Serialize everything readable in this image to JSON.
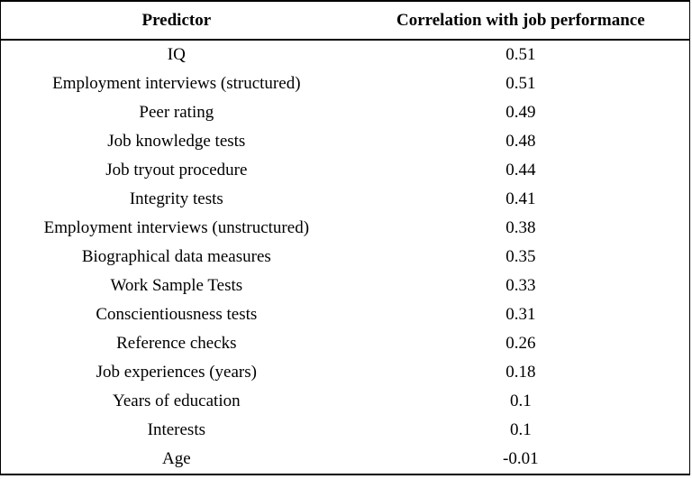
{
  "chart_data": {
    "type": "table",
    "columns": [
      "Predictor",
      "Correlation with job performance"
    ],
    "rows": [
      [
        "IQ",
        "0.51"
      ],
      [
        "Employment interviews (structured)",
        "0.51"
      ],
      [
        "Peer rating",
        "0.49"
      ],
      [
        "Job knowledge tests",
        "0.48"
      ],
      [
        "Job tryout procedure",
        "0.44"
      ],
      [
        "Integrity tests",
        "0.41"
      ],
      [
        "Employment interviews (unstructured)",
        "0.38"
      ],
      [
        "Biographical data measures",
        "0.35"
      ],
      [
        "Work Sample Tests",
        "0.33"
      ],
      [
        "Conscientiousness tests",
        "0.31"
      ],
      [
        "Reference checks",
        "0.26"
      ],
      [
        "Job experiences (years)",
        "0.18"
      ],
      [
        "Years of education",
        "0.1"
      ],
      [
        "Interests",
        "0.1"
      ],
      [
        "Age",
        "-0.01"
      ]
    ]
  },
  "colors": {
    "text": "#000000",
    "background": "#ffffff",
    "border": "#000000"
  }
}
